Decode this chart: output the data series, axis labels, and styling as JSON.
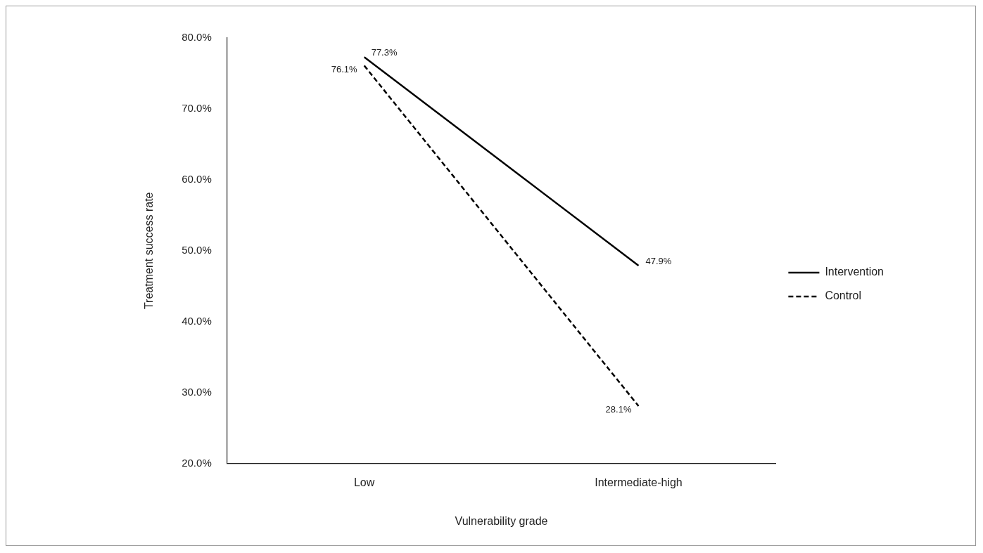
{
  "chart_data": {
    "type": "line",
    "xlabel": "Vulnerability grade",
    "ylabel": "Treatment success rate",
    "categories": [
      "Low",
      "Intermediate-high"
    ],
    "series": [
      {
        "name": "Intervention",
        "color": "#000000",
        "line_style": "solid",
        "values": [
          77.3,
          47.9
        ],
        "value_labels": [
          "77.3%",
          "47.9%"
        ]
      },
      {
        "name": "Control",
        "color": "#000000",
        "line_style": "dashed",
        "values": [
          76.1,
          28.1
        ],
        "value_labels": [
          "76.1%",
          "28.1%"
        ]
      }
    ],
    "ylim": [
      20,
      80
    ],
    "yticks": [
      {
        "value": 20,
        "label": "20.0%"
      },
      {
        "value": 30,
        "label": "30.0%"
      },
      {
        "value": 40,
        "label": "40.0%"
      },
      {
        "value": 50,
        "label": "50.0%"
      },
      {
        "value": 60,
        "label": "60.0%"
      },
      {
        "value": 70,
        "label": "70.0%"
      },
      {
        "value": 80,
        "label": "80.0%"
      }
    ],
    "grid": false,
    "legend": "right",
    "marker": "none"
  }
}
